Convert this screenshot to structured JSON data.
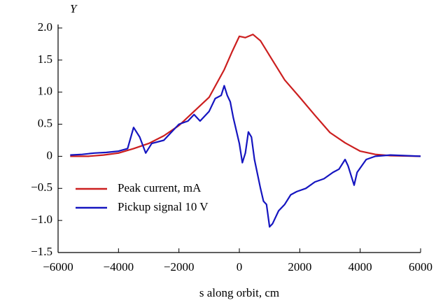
{
  "chart_data": {
    "type": "line",
    "xlabel": "s along orbit, cm",
    "ylabel": "Y",
    "xlim": [
      -6000,
      6000
    ],
    "xticks": [
      {
        "value": -6000,
        "label": "−6000"
      },
      {
        "value": -4000,
        "label": "−4000"
      },
      {
        "value": -2000,
        "label": "−2000"
      },
      0,
      2000,
      4000,
      6000
    ],
    "ylim": [
      -1.5,
      2.0
    ],
    "yticks": [
      {
        "value": -1.5,
        "label": "−1.5"
      },
      {
        "value": -1.0,
        "label": "−1.0"
      },
      {
        "value": -0.5,
        "label": "−0.5"
      },
      0,
      0.5,
      {
        "value": 1.0,
        "label": "1.0"
      },
      1.5,
      {
        "value": 2.0,
        "label": "2.0"
      }
    ],
    "series": [
      {
        "name": "Peak current, mA",
        "color": "#cc1f1f",
        "x": [
          -5600,
          -5000,
          -4500,
          -4000,
          -3500,
          -3000,
          -2500,
          -2000,
          -1500,
          -1000,
          -500,
          -250,
          0,
          100,
          200,
          450,
          700,
          1000,
          1500,
          2000,
          2500,
          3000,
          3500,
          4000,
          4500,
          5000,
          6000
        ],
        "values": [
          0,
          0,
          0.02,
          0.05,
          0.12,
          0.2,
          0.32,
          0.48,
          0.7,
          0.92,
          1.35,
          1.62,
          1.87,
          1.86,
          1.85,
          1.9,
          1.8,
          1.57,
          1.19,
          0.92,
          0.64,
          0.37,
          0.21,
          0.08,
          0.03,
          0.01,
          0
        ]
      },
      {
        "name": "Pickup signal 10 V",
        "color": "#1515c0",
        "x": [
          -5600,
          -5200,
          -4800,
          -4400,
          -4000,
          -3700,
          -3500,
          -3300,
          -3100,
          -2900,
          -2500,
          -2200,
          -2000,
          -1700,
          -1500,
          -1300,
          -1000,
          -800,
          -600,
          -500,
          -400,
          -300,
          -200,
          0,
          100,
          200,
          300,
          400,
          500,
          700,
          800,
          900,
          1000,
          1100,
          1300,
          1500,
          1700,
          1900,
          2200,
          2500,
          2800,
          3100,
          3300,
          3500,
          3600,
          3800,
          3900,
          4200,
          4500,
          5000,
          5500,
          6000
        ],
        "values": [
          0.02,
          0.03,
          0.05,
          0.06,
          0.08,
          0.12,
          0.45,
          0.3,
          0.05,
          0.2,
          0.25,
          0.4,
          0.5,
          0.55,
          0.65,
          0.55,
          0.7,
          0.9,
          0.95,
          1.1,
          0.95,
          0.85,
          0.6,
          0.2,
          -0.1,
          0.05,
          0.38,
          0.3,
          -0.05,
          -0.5,
          -0.7,
          -0.75,
          -1.1,
          -1.05,
          -0.85,
          -0.75,
          -0.6,
          -0.55,
          -0.5,
          -0.4,
          -0.35,
          -0.25,
          -0.2,
          -0.05,
          -0.15,
          -0.45,
          -0.25,
          -0.05,
          0,
          0.02,
          0.01,
          0
        ]
      }
    ]
  }
}
